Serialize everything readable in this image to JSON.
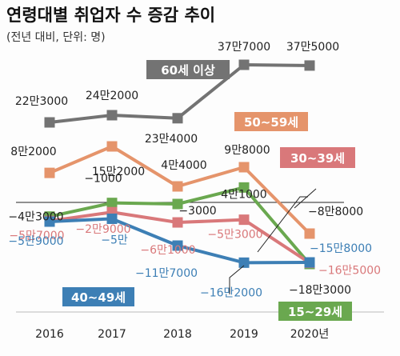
{
  "chart_data": {
    "type": "line",
    "title": "연령대별 취업자 수 증감 추이",
    "subtitle": "(전년 대비, 단위: 명)",
    "categories": [
      "2016",
      "2017",
      "2018",
      "2019",
      "2020년"
    ],
    "series": [
      {
        "name": "60세 이상",
        "color": "#737373",
        "values": [
          223000,
          242000,
          234000,
          377000,
          375000
        ],
        "labels": [
          "22만3000",
          "24만2000",
          "23만4000",
          "37만7000",
          "37만5000"
        ]
      },
      {
        "name": "50~59세",
        "color": "#e5946b",
        "values": [
          82000,
          152000,
          44000,
          98000,
          -88000
        ],
        "labels": [
          "8만2000",
          "15만2000",
          "4만4000",
          "9만8000",
          "−8만8000"
        ]
      },
      {
        "name": "15~29세",
        "color": "#6aa84f",
        "values": [
          -43000,
          -1000,
          -3000,
          41000,
          -183000
        ],
        "labels": [
          "−4만3000",
          "−1000",
          "−3000",
          "4만1000",
          "−18만3000"
        ]
      },
      {
        "name": "30~39세",
        "color": "#d9787a",
        "values": [
          -57000,
          -29000,
          -61000,
          -53000,
          -165000
        ],
        "labels": [
          "−5만7000",
          "−2만9000",
          "−6만1000",
          "−5만3000",
          "−16만5000"
        ]
      },
      {
        "name": "40~49세",
        "color": "#3d7fb5",
        "values": [
          -59000,
          -50000,
          -117000,
          -162000,
          -158000
        ],
        "labels": [
          "−5만9000",
          "−5만",
          "−11만7000",
          "−16만2000",
          "−15만8000"
        ]
      }
    ]
  }
}
